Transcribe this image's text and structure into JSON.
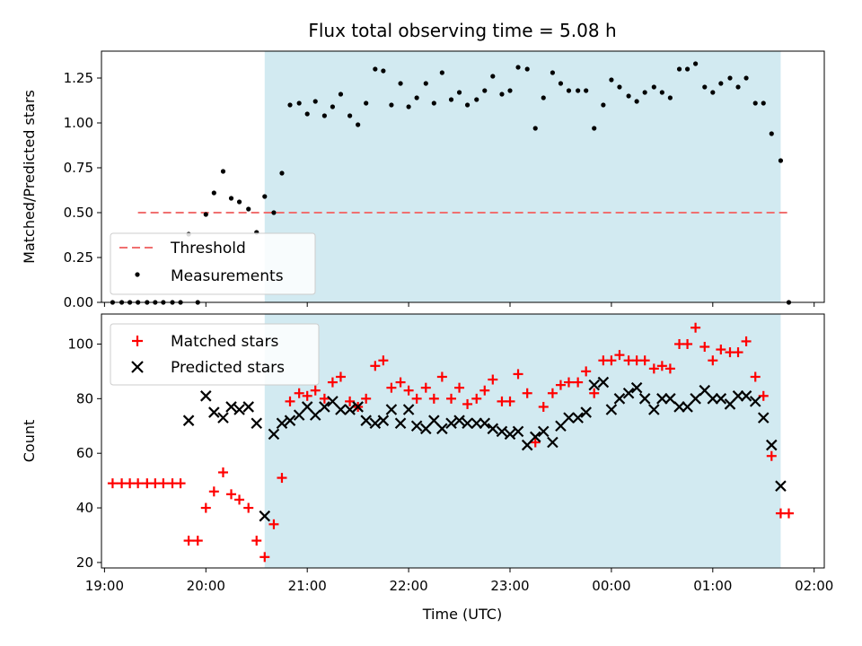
{
  "title": "Flux total observing time = 5.08 h",
  "x_axis": {
    "label": "Time (UTC)",
    "ticks": [
      {
        "value": 19.0,
        "label": "19:00"
      },
      {
        "value": 20.0,
        "label": "20:00"
      },
      {
        "value": 21.0,
        "label": "21:00"
      },
      {
        "value": 22.0,
        "label": "22:00"
      },
      {
        "value": 23.0,
        "label": "23:00"
      },
      {
        "value": 24.0,
        "label": "00:00"
      },
      {
        "value": 25.0,
        "label": "01:00"
      },
      {
        "value": 26.0,
        "label": "02:00"
      }
    ]
  },
  "chart_data": [
    {
      "type": "scatter",
      "ylabel": "Matched/Predicted stars",
      "xlim": [
        18.97,
        26.1
      ],
      "ylim": [
        0,
        1.4
      ],
      "yticks": [
        0.0,
        0.25,
        0.5,
        0.75,
        1.0,
        1.25
      ],
      "ytick_labels": [
        "0.00",
        "0.25",
        "0.50",
        "0.75",
        "1.00",
        "1.25"
      ],
      "shaded_span": [
        20.58,
        25.67
      ],
      "threshold": {
        "name": "Threshold",
        "y": 0.5,
        "x": [
          19.33,
          25.75
        ],
        "color": "#f07070"
      },
      "legend": {
        "position": "lower-left",
        "entries": [
          "Threshold",
          "Measurements"
        ]
      },
      "series": [
        {
          "name": "Measurements",
          "color": "#000000",
          "points": [
            [
              19.08,
              0.0
            ],
            [
              19.17,
              0.0
            ],
            [
              19.25,
              0.0
            ],
            [
              19.33,
              0.0
            ],
            [
              19.42,
              0.0
            ],
            [
              19.5,
              0.0
            ],
            [
              19.58,
              0.0
            ],
            [
              19.67,
              0.0
            ],
            [
              19.75,
              0.0
            ],
            [
              19.83,
              0.38
            ],
            [
              19.92,
              0.0
            ],
            [
              20.0,
              0.49
            ],
            [
              20.08,
              0.61
            ],
            [
              20.17,
              0.73
            ],
            [
              20.25,
              0.58
            ],
            [
              20.33,
              0.56
            ],
            [
              20.42,
              0.52
            ],
            [
              20.5,
              0.39
            ],
            [
              20.58,
              0.59
            ],
            [
              20.67,
              0.5
            ],
            [
              20.75,
              0.72
            ],
            [
              20.83,
              1.1
            ],
            [
              20.92,
              1.11
            ],
            [
              21.0,
              1.05
            ],
            [
              21.08,
              1.12
            ],
            [
              21.17,
              1.04
            ],
            [
              21.25,
              1.09
            ],
            [
              21.33,
              1.16
            ],
            [
              21.42,
              1.04
            ],
            [
              21.5,
              0.99
            ],
            [
              21.58,
              1.11
            ],
            [
              21.67,
              1.3
            ],
            [
              21.75,
              1.29
            ],
            [
              21.83,
              1.1
            ],
            [
              21.92,
              1.22
            ],
            [
              22.0,
              1.09
            ],
            [
              22.08,
              1.14
            ],
            [
              22.17,
              1.22
            ],
            [
              22.25,
              1.11
            ],
            [
              22.33,
              1.28
            ],
            [
              22.42,
              1.13
            ],
            [
              22.5,
              1.17
            ],
            [
              22.58,
              1.1
            ],
            [
              22.67,
              1.13
            ],
            [
              22.75,
              1.18
            ],
            [
              22.83,
              1.26
            ],
            [
              22.92,
              1.16
            ],
            [
              23.0,
              1.18
            ],
            [
              23.08,
              1.31
            ],
            [
              23.17,
              1.3
            ],
            [
              23.25,
              0.97
            ],
            [
              23.33,
              1.14
            ],
            [
              23.42,
              1.28
            ],
            [
              23.5,
              1.22
            ],
            [
              23.58,
              1.18
            ],
            [
              23.67,
              1.18
            ],
            [
              23.75,
              1.18
            ],
            [
              23.83,
              0.97
            ],
            [
              23.92,
              1.1
            ],
            [
              24.0,
              1.24
            ],
            [
              24.08,
              1.2
            ],
            [
              24.17,
              1.15
            ],
            [
              24.25,
              1.12
            ],
            [
              24.33,
              1.17
            ],
            [
              24.42,
              1.2
            ],
            [
              24.5,
              1.17
            ],
            [
              24.58,
              1.14
            ],
            [
              24.67,
              1.3
            ],
            [
              24.75,
              1.3
            ],
            [
              24.83,
              1.33
            ],
            [
              24.92,
              1.2
            ],
            [
              25.0,
              1.17
            ],
            [
              25.08,
              1.22
            ],
            [
              25.17,
              1.25
            ],
            [
              25.25,
              1.2
            ],
            [
              25.33,
              1.25
            ],
            [
              25.42,
              1.11
            ],
            [
              25.5,
              1.11
            ],
            [
              25.58,
              0.94
            ],
            [
              25.67,
              0.79
            ],
            [
              25.75,
              0.0
            ]
          ]
        }
      ]
    },
    {
      "type": "scatter",
      "ylabel": "Count",
      "xlabel": "Time (UTC)",
      "xlim": [
        18.97,
        26.1
      ],
      "ylim": [
        18,
        111
      ],
      "yticks": [
        20,
        40,
        60,
        80,
        100
      ],
      "ytick_labels": [
        "20",
        "40",
        "60",
        "80",
        "100"
      ],
      "shaded_span": [
        20.58,
        25.67
      ],
      "legend": {
        "position": "upper-left",
        "entries": [
          "Matched stars",
          "Predicted stars"
        ]
      },
      "series": [
        {
          "name": "Matched stars",
          "marker": "plus",
          "color": "#ff0000",
          "points": [
            [
              19.08,
              49
            ],
            [
              19.17,
              49
            ],
            [
              19.25,
              49
            ],
            [
              19.33,
              49
            ],
            [
              19.42,
              49
            ],
            [
              19.5,
              49
            ],
            [
              19.58,
              49
            ],
            [
              19.67,
              49
            ],
            [
              19.75,
              49
            ],
            [
              19.83,
              28
            ],
            [
              19.92,
              28
            ],
            [
              20.0,
              40
            ],
            [
              20.08,
              46
            ],
            [
              20.17,
              53
            ],
            [
              20.25,
              45
            ],
            [
              20.33,
              43
            ],
            [
              20.42,
              40
            ],
            [
              20.5,
              28
            ],
            [
              20.58,
              22
            ],
            [
              20.67,
              34
            ],
            [
              20.75,
              51
            ],
            [
              20.83,
              79
            ],
            [
              20.92,
              82
            ],
            [
              21.0,
              81
            ],
            [
              21.08,
              83
            ],
            [
              21.17,
              80
            ],
            [
              21.25,
              86
            ],
            [
              21.33,
              88
            ],
            [
              21.42,
              79
            ],
            [
              21.5,
              77
            ],
            [
              21.58,
              80
            ],
            [
              21.67,
              92
            ],
            [
              21.75,
              94
            ],
            [
              21.83,
              84
            ],
            [
              21.92,
              86
            ],
            [
              22.0,
              83
            ],
            [
              22.08,
              80
            ],
            [
              22.17,
              84
            ],
            [
              22.25,
              80
            ],
            [
              22.33,
              88
            ],
            [
              22.42,
              80
            ],
            [
              22.5,
              84
            ],
            [
              22.58,
              78
            ],
            [
              22.67,
              80
            ],
            [
              22.75,
              83
            ],
            [
              22.83,
              87
            ],
            [
              22.92,
              79
            ],
            [
              23.0,
              79
            ],
            [
              23.08,
              89
            ],
            [
              23.17,
              82
            ],
            [
              23.25,
              64
            ],
            [
              23.33,
              77
            ],
            [
              23.42,
              82
            ],
            [
              23.5,
              85
            ],
            [
              23.58,
              86
            ],
            [
              23.67,
              86
            ],
            [
              23.75,
              90
            ],
            [
              23.83,
              82
            ],
            [
              23.92,
              94
            ],
            [
              24.0,
              94
            ],
            [
              24.08,
              96
            ],
            [
              24.17,
              94
            ],
            [
              24.25,
              94
            ],
            [
              24.33,
              94
            ],
            [
              24.42,
              91
            ],
            [
              24.5,
              92
            ],
            [
              24.58,
              91
            ],
            [
              24.67,
              100
            ],
            [
              24.75,
              100
            ],
            [
              24.83,
              106
            ],
            [
              24.92,
              99
            ],
            [
              25.0,
              94
            ],
            [
              25.08,
              98
            ],
            [
              25.17,
              97
            ],
            [
              25.25,
              97
            ],
            [
              25.33,
              101
            ],
            [
              25.42,
              88
            ],
            [
              25.5,
              81
            ],
            [
              25.58,
              59
            ],
            [
              25.67,
              38
            ],
            [
              25.75,
              38
            ]
          ]
        },
        {
          "name": "Predicted stars",
          "marker": "x",
          "color": "#000000",
          "points": [
            [
              19.83,
              72
            ],
            [
              20.0,
              81
            ],
            [
              20.08,
              75
            ],
            [
              20.17,
              73
            ],
            [
              20.25,
              77
            ],
            [
              20.33,
              76
            ],
            [
              20.42,
              77
            ],
            [
              20.5,
              71
            ],
            [
              20.58,
              37
            ],
            [
              20.67,
              67
            ],
            [
              20.75,
              71
            ],
            [
              20.83,
              72
            ],
            [
              20.92,
              74
            ],
            [
              21.0,
              77
            ],
            [
              21.08,
              74
            ],
            [
              21.17,
              77
            ],
            [
              21.25,
              79
            ],
            [
              21.33,
              76
            ],
            [
              21.42,
              76
            ],
            [
              21.5,
              77
            ],
            [
              21.58,
              72
            ],
            [
              21.67,
              71
            ],
            [
              21.75,
              72
            ],
            [
              21.83,
              76
            ],
            [
              21.92,
              71
            ],
            [
              22.0,
              76
            ],
            [
              22.08,
              70
            ],
            [
              22.17,
              69
            ],
            [
              22.25,
              72
            ],
            [
              22.33,
              69
            ],
            [
              22.42,
              71
            ],
            [
              22.5,
              72
            ],
            [
              22.58,
              71
            ],
            [
              22.67,
              71
            ],
            [
              22.75,
              71
            ],
            [
              22.83,
              69
            ],
            [
              22.92,
              68
            ],
            [
              23.0,
              67
            ],
            [
              23.08,
              68
            ],
            [
              23.17,
              63
            ],
            [
              23.25,
              66
            ],
            [
              23.33,
              68
            ],
            [
              23.42,
              64
            ],
            [
              23.5,
              70
            ],
            [
              23.58,
              73
            ],
            [
              23.67,
              73
            ],
            [
              23.75,
              75
            ],
            [
              23.83,
              85
            ],
            [
              23.92,
              86
            ],
            [
              24.0,
              76
            ],
            [
              24.08,
              80
            ],
            [
              24.17,
              82
            ],
            [
              24.25,
              84
            ],
            [
              24.33,
              80
            ],
            [
              24.42,
              76
            ],
            [
              24.5,
              80
            ],
            [
              24.58,
              80
            ],
            [
              24.67,
              77
            ],
            [
              24.75,
              77
            ],
            [
              24.83,
              80
            ],
            [
              24.92,
              83
            ],
            [
              25.0,
              80
            ],
            [
              25.08,
              80
            ],
            [
              25.17,
              78
            ],
            [
              25.25,
              81
            ],
            [
              25.33,
              81
            ],
            [
              25.42,
              79
            ],
            [
              25.5,
              73
            ],
            [
              25.58,
              63
            ],
            [
              25.67,
              48
            ]
          ]
        }
      ]
    }
  ]
}
